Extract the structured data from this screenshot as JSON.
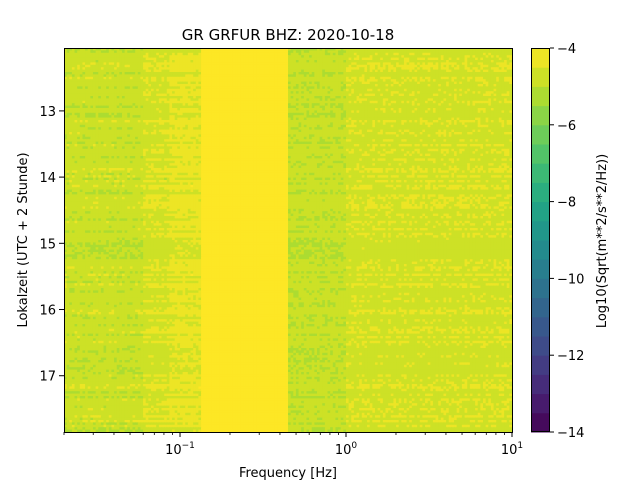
{
  "chart_data": {
    "type": "heatmap",
    "title": "GR GRFUR  BHZ: 2020-10-18",
    "xlabel": "Frequency [Hz]",
    "ylabel": "Lokalzeit (UTC + 2 Stunde)",
    "x_scale": "log",
    "xlim": [
      0.02,
      10
    ],
    "ylim": [
      12.05,
      17.85
    ],
    "y_inverted": true,
    "x_ticks": [
      {
        "value": 0.1,
        "base": "10",
        "exp": "−1"
      },
      {
        "value": 1,
        "base": "10",
        "exp": "0"
      },
      {
        "value": 10,
        "base": "10",
        "exp": "1"
      }
    ],
    "y_ticks": [
      13,
      14,
      15,
      16,
      17
    ],
    "colorbar": {
      "label": "Log10(Sqrt(m**2/s**2/Hz))",
      "range": [
        -14,
        -4
      ],
      "ticks": [
        -4,
        -6,
        -8,
        -10,
        -12,
        -14
      ],
      "tick_labels": [
        "−4",
        "−6",
        "−8",
        "−10",
        "−12",
        "−14"
      ],
      "levels": 20,
      "colormap": "viridis"
    },
    "frequency_bands": [
      {
        "f_min": 0.02,
        "f_max": 0.06,
        "value": -4.8
      },
      {
        "f_min": 0.06,
        "f_max": 0.085,
        "value": -4.6
      },
      {
        "f_min": 0.085,
        "f_max": 0.135,
        "value": -4.4
      },
      {
        "f_min": 0.135,
        "f_max": 0.45,
        "value": -4.0
      },
      {
        "f_min": 0.45,
        "f_max": 1.0,
        "value": -4.9
      },
      {
        "f_min": 1.0,
        "f_max": 10,
        "value": -4.6
      }
    ],
    "notes_visible": "high power band 0.14-0.45 Hz throughout 12-18 h"
  }
}
